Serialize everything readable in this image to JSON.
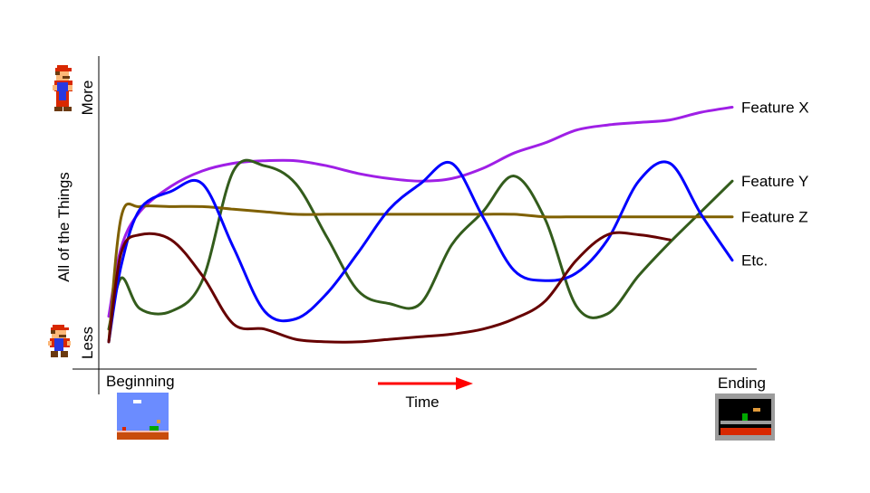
{
  "chart_data": {
    "type": "line",
    "title": "",
    "xlabel": "Time",
    "ylabel": "All of the Things",
    "x_tick_labels": {
      "start": "Beginning",
      "end": "Ending"
    },
    "y_tick_labels": {
      "low": "Less",
      "high": "More"
    },
    "xlim": [
      0,
      1
    ],
    "ylim": [
      0,
      1
    ],
    "grid": false,
    "legend": "none",
    "x": [
      0,
      0.02,
      0.05,
      0.1,
      0.15,
      0.2,
      0.25,
      0.3,
      0.35,
      0.4,
      0.45,
      0.5,
      0.55,
      0.6,
      0.65,
      0.7,
      0.75,
      0.8,
      0.85,
      0.9,
      0.95,
      1.0
    ],
    "series": [
      {
        "name": "Feature X",
        "color": "#9f1fe6",
        "values": [
          0.15,
          0.42,
          0.56,
          0.66,
          0.72,
          0.75,
          0.76,
          0.76,
          0.74,
          0.71,
          0.69,
          0.68,
          0.69,
          0.73,
          0.79,
          0.83,
          0.88,
          0.9,
          0.91,
          0.92,
          0.95,
          0.97
        ]
      },
      {
        "name": "Feature Y",
        "color": "#335c1c",
        "values": [
          0.1,
          0.3,
          0.18,
          0.17,
          0.29,
          0.72,
          0.74,
          0.67,
          0.46,
          0.25,
          0.2,
          0.2,
          0.43,
          0.56,
          0.7,
          0.53,
          0.19,
          0.16,
          0.31,
          0.44,
          0.56,
          0.68
        ]
      },
      {
        "name": "Feature Z",
        "color": "#7f6000",
        "values": [
          0.05,
          0.54,
          0.58,
          0.58,
          0.58,
          0.57,
          0.56,
          0.55,
          0.55,
          0.55,
          0.55,
          0.55,
          0.55,
          0.55,
          0.55,
          0.54,
          0.54,
          0.54,
          0.54,
          0.54,
          0.54,
          0.54
        ]
      },
      {
        "name": "Etc.",
        "color": "#0000ff",
        "values": [
          0.05,
          0.35,
          0.57,
          0.64,
          0.67,
          0.42,
          0.17,
          0.14,
          0.24,
          0.4,
          0.57,
          0.67,
          0.75,
          0.54,
          0.33,
          0.29,
          0.32,
          0.45,
          0.68,
          0.75,
          0.55,
          0.37
        ]
      },
      {
        "name": "",
        "color": "#660000",
        "values": [
          0.05,
          0.4,
          0.47,
          0.45,
          0.31,
          0.12,
          0.1,
          0.06,
          0.05,
          0.05,
          0.06,
          0.07,
          0.08,
          0.1,
          0.14,
          0.21,
          0.37,
          0.47,
          0.47,
          0.45,
          null,
          null
        ]
      }
    ]
  },
  "axis_color": "#000000",
  "time_arrow_color": "#ff0000",
  "images": {
    "high_icon": "mario-big-standing-icon",
    "low_icon": "mario-small-standing-icon",
    "start_thumbnail": "level-start-thumbnail",
    "end_thumbnail": "castle-level-end-thumbnail"
  }
}
